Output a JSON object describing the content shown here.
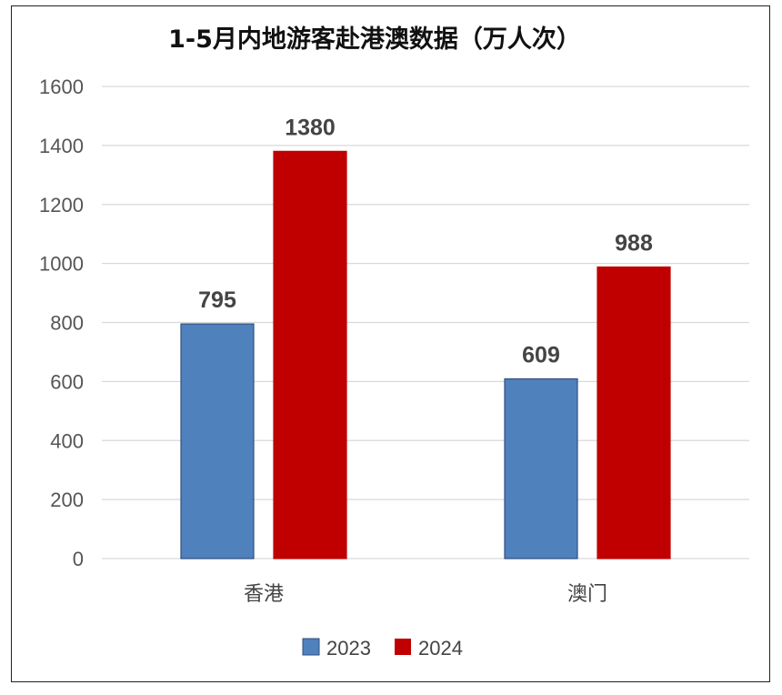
{
  "chart_data": {
    "type": "bar",
    "title": "1-5月内地游客赴港澳数据（万人次）",
    "categories": [
      "香港",
      "澳门"
    ],
    "series": [
      {
        "name": "2023",
        "values": [
          795,
          609
        ],
        "color": "#4f81bd",
        "edge": "#2f4f7f"
      },
      {
        "name": "2024",
        "values": [
          1380,
          988
        ],
        "color": "#c00000",
        "edge": "#c00000"
      }
    ],
    "yticks": [
      "0",
      "200",
      "400",
      "600",
      "800",
      "1000",
      "1200",
      "1400",
      "1600"
    ],
    "ylim": [
      0,
      1600
    ],
    "grid": true,
    "legend": "bottom",
    "xlabel": "",
    "ylabel": ""
  }
}
